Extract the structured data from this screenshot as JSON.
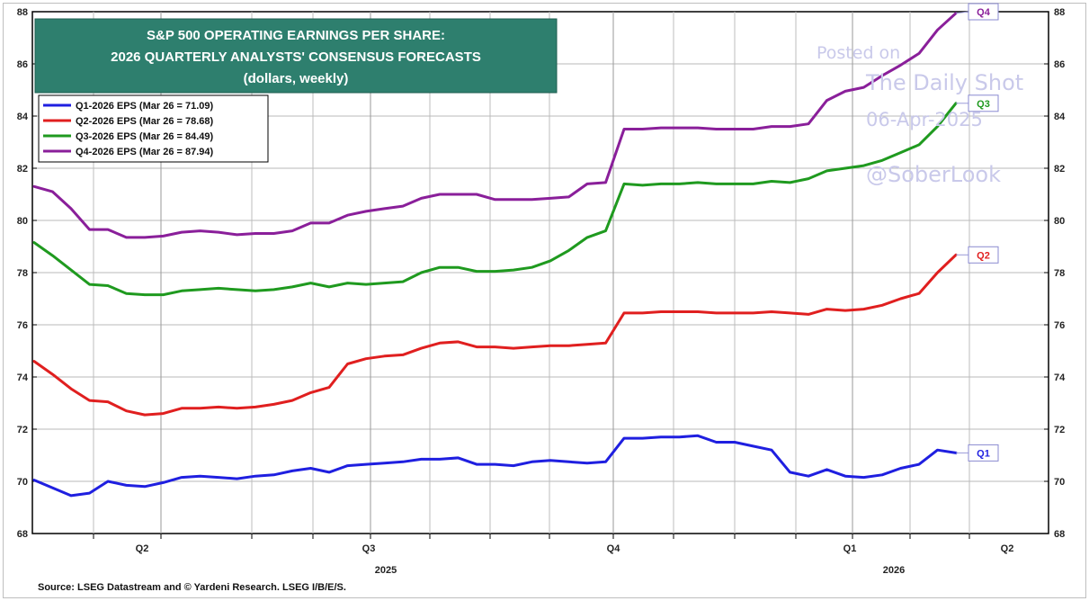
{
  "chart_data": {
    "type": "line",
    "title_lines": [
      "S&P 500 OPERATING EARNINGS PER SHARE:",
      "2026 QUARTERLY ANALYSTS' CONSENSUS FORECASTS",
      "(dollars, weekly)"
    ],
    "ylim": [
      68,
      88
    ],
    "y_ticks": [
      "68",
      "70",
      "72",
      "74",
      "76",
      "78",
      "80",
      "82",
      "84",
      "86",
      "88"
    ],
    "x_quarter_labels": [
      "Q2",
      "Q3",
      "Q4",
      "Q1",
      "Q2"
    ],
    "x_year_labels": [
      "2025",
      "2026"
    ],
    "source": "Source: LSEG Datastream and © Yardeni Research. LSEG I/B/E/S.",
    "watermark": [
      "Posted on",
      "The Daily Shot",
      "06-Apr-2025",
      "@SoberLook"
    ],
    "series": [
      {
        "name": "Q1-2026 EPS (Mar 26 = 71.09)",
        "end_label": "Q1",
        "color": "#1f1fe0",
        "values": [
          70.05,
          69.75,
          69.45,
          69.55,
          70.0,
          69.85,
          69.8,
          69.95,
          70.15,
          70.2,
          70.15,
          70.1,
          70.2,
          70.25,
          70.4,
          70.5,
          70.35,
          70.6,
          70.65,
          70.7,
          70.75,
          70.85,
          70.85,
          70.9,
          70.65,
          70.65,
          70.6,
          70.75,
          70.8,
          70.75,
          70.7,
          70.75,
          71.65,
          71.65,
          71.7,
          71.7,
          71.75,
          71.5,
          71.5,
          71.35,
          71.2,
          70.35,
          70.2,
          70.45,
          70.2,
          70.15,
          70.25,
          70.5,
          70.65,
          71.2,
          71.09
        ]
      },
      {
        "name": "Q2-2026 EPS (Mar 26 = 78.68)",
        "end_label": "Q2",
        "color": "#e01f1f",
        "values": [
          74.6,
          74.1,
          73.55,
          73.1,
          73.05,
          72.7,
          72.55,
          72.6,
          72.8,
          72.8,
          72.85,
          72.8,
          72.85,
          72.95,
          73.1,
          73.4,
          73.6,
          74.5,
          74.7,
          74.8,
          74.85,
          75.1,
          75.3,
          75.35,
          75.15,
          75.15,
          75.1,
          75.15,
          75.2,
          75.2,
          75.25,
          75.3,
          76.45,
          76.45,
          76.5,
          76.5,
          76.5,
          76.45,
          76.45,
          76.45,
          76.5,
          76.45,
          76.4,
          76.6,
          76.55,
          76.6,
          76.75,
          77.0,
          77.2,
          78.0,
          78.68
        ]
      },
      {
        "name": "Q3-2026 EPS (Mar 26 = 84.49)",
        "end_label": "Q3",
        "color": "#1f9a1f",
        "values": [
          79.15,
          78.65,
          78.1,
          77.55,
          77.5,
          77.2,
          77.15,
          77.15,
          77.3,
          77.35,
          77.4,
          77.35,
          77.3,
          77.35,
          77.45,
          77.6,
          77.45,
          77.6,
          77.55,
          77.6,
          77.65,
          78.0,
          78.2,
          78.2,
          78.05,
          78.05,
          78.1,
          78.2,
          78.45,
          78.85,
          79.35,
          79.6,
          81.4,
          81.35,
          81.4,
          81.4,
          81.45,
          81.4,
          81.4,
          81.4,
          81.5,
          81.45,
          81.6,
          81.9,
          82.0,
          82.1,
          82.3,
          82.6,
          82.9,
          83.6,
          84.49
        ]
      },
      {
        "name": "Q4-2026 EPS (Mar 26 = 87.94)",
        "end_label": "Q4",
        "color": "#8a1f9a",
        "values": [
          81.3,
          81.1,
          80.45,
          79.65,
          79.65,
          79.35,
          79.35,
          79.4,
          79.55,
          79.6,
          79.55,
          79.45,
          79.5,
          79.5,
          79.6,
          79.9,
          79.9,
          80.2,
          80.35,
          80.45,
          80.55,
          80.85,
          81.0,
          81.0,
          81.0,
          80.8,
          80.8,
          80.8,
          80.85,
          80.9,
          81.4,
          81.45,
          83.5,
          83.5,
          83.55,
          83.55,
          83.55,
          83.5,
          83.5,
          83.5,
          83.6,
          83.6,
          83.7,
          84.6,
          84.95,
          85.1,
          85.55,
          85.95,
          86.4,
          87.3,
          87.94
        ]
      }
    ]
  }
}
